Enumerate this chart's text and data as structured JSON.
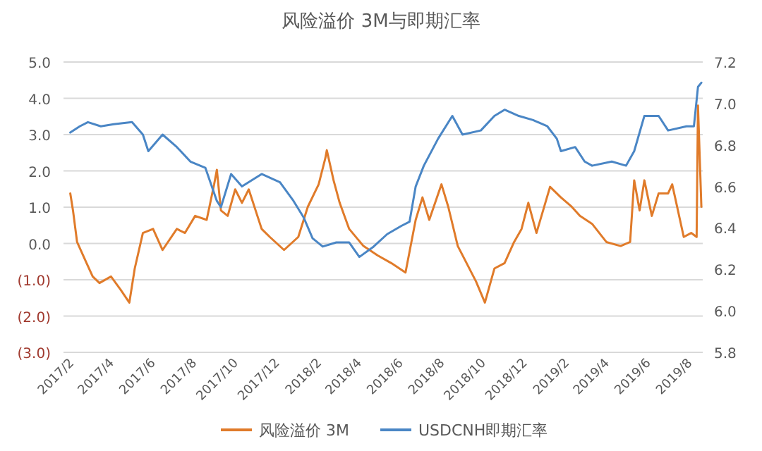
{
  "chart_data": {
    "type": "line",
    "title": "风险溢价 3M与即期汇率",
    "legend": "bottom",
    "grid": "y",
    "xlim": [
      "2017-01-22",
      "2019-08-22"
    ],
    "xticks": [
      {
        "value": "2017-02",
        "label": "2017/2"
      },
      {
        "value": "2017-04",
        "label": "2017/4"
      },
      {
        "value": "2017-06",
        "label": "2017/6"
      },
      {
        "value": "2017-08",
        "label": "2017/8"
      },
      {
        "value": "2017-10",
        "label": "2017/10"
      },
      {
        "value": "2017-12",
        "label": "2017/12"
      },
      {
        "value": "2018-02",
        "label": "2018/2"
      },
      {
        "value": "2018-04",
        "label": "2018/4"
      },
      {
        "value": "2018-06",
        "label": "2018/6"
      },
      {
        "value": "2018-08",
        "label": "2018/8"
      },
      {
        "value": "2018-10",
        "label": "2018/10"
      },
      {
        "value": "2018-12",
        "label": "2018/12"
      },
      {
        "value": "2019-02",
        "label": "2019/2"
      },
      {
        "value": "2019-04",
        "label": "2019/4"
      },
      {
        "value": "2019-06",
        "label": "2019/6"
      },
      {
        "value": "2019-08",
        "label": "2019/8"
      }
    ],
    "ylim": [
      -3,
      5
    ],
    "yticks": [
      {
        "value": 5,
        "label": "5.0"
      },
      {
        "value": 4,
        "label": "4.0"
      },
      {
        "value": 3,
        "label": "3.0"
      },
      {
        "value": 2,
        "label": "2.0"
      },
      {
        "value": 1,
        "label": "1.0"
      },
      {
        "value": 0,
        "label": "0.0"
      },
      {
        "value": -1,
        "label": "(1.0)"
      },
      {
        "value": -2,
        "label": "(2.0)"
      },
      {
        "value": -3,
        "label": "(3.0)"
      }
    ],
    "y2lim": [
      5.8,
      7.2
    ],
    "y2ticks": [
      {
        "value": 7.2,
        "label": "7.2"
      },
      {
        "value": 7.0,
        "label": "7.0"
      },
      {
        "value": 6.8,
        "label": "6.8"
      },
      {
        "value": 6.6,
        "label": "6.6"
      },
      {
        "value": 6.4,
        "label": "6.4"
      },
      {
        "value": 6.2,
        "label": "6.2"
      },
      {
        "value": 6.0,
        "label": "6.0"
      },
      {
        "value": 5.8,
        "label": "5.8"
      }
    ],
    "series": [
      {
        "name": "风险溢价 3M",
        "color": "#e07b2a",
        "x": [
          "2017-02-01",
          "2017-02-05",
          "2017-02-11",
          "2017-02-25",
          "2017-03-06",
          "2017-03-16",
          "2017-04-02",
          "2017-04-16",
          "2017-04-29",
          "2017-05-07",
          "2017-05-19",
          "2017-06-03",
          "2017-06-17",
          "2017-07-08",
          "2017-07-20",
          "2017-08-04",
          "2017-08-21",
          "2017-09-01",
          "2017-09-05",
          "2017-09-11",
          "2017-09-21",
          "2017-10-02",
          "2017-10-12",
          "2017-10-22",
          "2017-11-10",
          "2017-11-22",
          "2017-12-13",
          "2018-01-03",
          "2018-01-17",
          "2018-02-02",
          "2018-02-12",
          "2018-02-14",
          "2018-02-24",
          "2018-03-05",
          "2018-03-19",
          "2018-04-09",
          "2018-04-30",
          "2018-05-20",
          "2018-06-10",
          "2018-06-25",
          "2018-07-05",
          "2018-07-15",
          "2018-08-02",
          "2018-08-12",
          "2018-08-26",
          "2018-09-08",
          "2018-09-22",
          "2018-10-05",
          "2018-10-19",
          "2018-11-03",
          "2018-11-17",
          "2018-11-28",
          "2018-12-08",
          "2018-12-20",
          "2019-01-09",
          "2019-01-25",
          "2019-02-10",
          "2019-02-22",
          "2019-03-12",
          "2019-04-02",
          "2019-04-23",
          "2019-05-07",
          "2019-05-13",
          "2019-05-21",
          "2019-05-28",
          "2019-06-08",
          "2019-06-18",
          "2019-07-02",
          "2019-07-08",
          "2019-07-14",
          "2019-07-25",
          "2019-08-05",
          "2019-08-13",
          "2019-08-15",
          "2019-08-20"
        ],
        "values": [
          1.38,
          0.91,
          0.04,
          -0.54,
          -0.91,
          -1.09,
          -0.91,
          -1.27,
          -1.63,
          -0.69,
          0.29,
          0.4,
          -0.18,
          0.4,
          0.29,
          0.76,
          0.65,
          1.63,
          2.03,
          0.91,
          0.76,
          1.49,
          1.12,
          1.49,
          0.4,
          0.18,
          -0.18,
          0.18,
          1.01,
          1.63,
          2.36,
          2.57,
          1.74,
          1.12,
          0.4,
          -0.07,
          -0.33,
          -0.54,
          -0.8,
          0.65,
          1.27,
          0.65,
          1.63,
          1.01,
          -0.07,
          -0.54,
          -1.05,
          -1.63,
          -0.69,
          -0.54,
          0.04,
          0.4,
          1.12,
          0.29,
          1.56,
          1.27,
          1.01,
          0.76,
          0.54,
          0.04,
          -0.07,
          0.04,
          1.74,
          0.91,
          1.74,
          0.76,
          1.38,
          1.38,
          1.63,
          1.12,
          0.18,
          0.29,
          0.18,
          3.8,
          1.01
        ]
      },
      {
        "name": "USDCNH即期汇率",
        "color": "#4a86c5",
        "axis": "y2",
        "x": [
          "2017-02-01",
          "2017-02-15",
          "2017-02-27",
          "2017-03-18",
          "2017-04-06",
          "2017-05-03",
          "2017-05-19",
          "2017-05-27",
          "2017-06-17",
          "2017-07-08",
          "2017-07-28",
          "2017-08-19",
          "2017-09-05",
          "2017-09-11",
          "2017-09-26",
          "2017-10-12",
          "2017-11-10",
          "2017-12-07",
          "2017-12-27",
          "2018-01-11",
          "2018-01-24",
          "2018-02-08",
          "2018-02-28",
          "2018-03-19",
          "2018-04-03",
          "2018-04-24",
          "2018-05-14",
          "2018-06-04",
          "2018-06-16",
          "2018-06-25",
          "2018-07-07",
          "2018-07-28",
          "2018-08-18",
          "2018-09-02",
          "2018-09-29",
          "2018-10-19",
          "2018-11-03",
          "2018-11-24",
          "2018-12-15",
          "2019-01-05",
          "2019-01-19",
          "2019-01-25",
          "2019-02-15",
          "2019-03-01",
          "2019-03-12",
          "2019-04-10",
          "2019-05-01",
          "2019-05-13",
          "2019-05-28",
          "2019-06-18",
          "2019-07-02",
          "2019-07-29",
          "2019-08-09",
          "2019-08-15",
          "2019-08-20"
        ],
        "values": [
          6.86,
          6.89,
          6.91,
          6.89,
          6.9,
          6.91,
          6.85,
          6.77,
          6.85,
          6.79,
          6.72,
          6.69,
          6.53,
          6.5,
          6.66,
          6.6,
          6.66,
          6.62,
          6.53,
          6.45,
          6.35,
          6.31,
          6.33,
          6.33,
          6.26,
          6.31,
          6.37,
          6.41,
          6.43,
          6.6,
          6.7,
          6.83,
          6.94,
          6.85,
          6.87,
          6.94,
          6.97,
          6.94,
          6.92,
          6.89,
          6.83,
          6.77,
          6.79,
          6.72,
          6.7,
          6.72,
          6.7,
          6.77,
          6.94,
          6.94,
          6.87,
          6.89,
          6.89,
          7.08,
          7.1
        ]
      }
    ]
  }
}
